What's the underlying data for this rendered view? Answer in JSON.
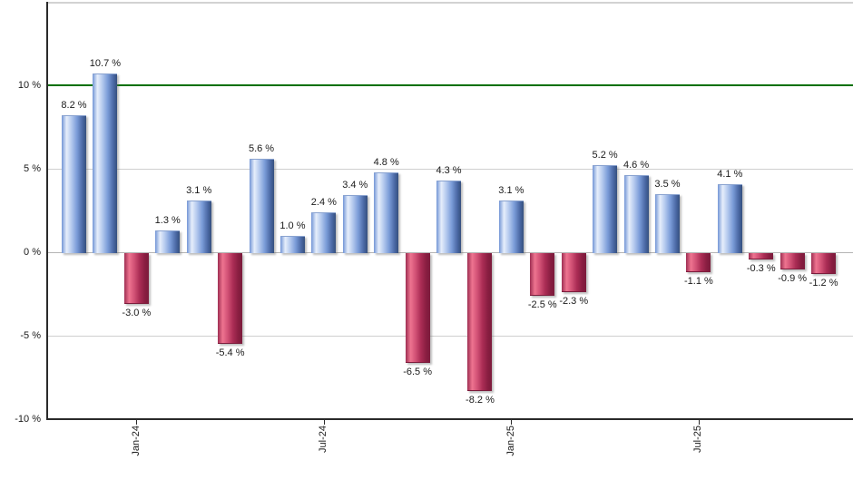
{
  "chart_data": {
    "type": "bar",
    "title": "",
    "xlabel": "",
    "ylabel": "",
    "unit": "%",
    "values": [
      8.2,
      10.7,
      -3.0,
      1.3,
      3.1,
      -5.4,
      5.6,
      1.0,
      2.4,
      3.4,
      4.8,
      -6.5,
      4.3,
      -8.2,
      3.1,
      -2.5,
      -2.3,
      5.2,
      4.6,
      3.5,
      -1.1,
      4.1,
      -0.3,
      -0.9,
      -1.2
    ],
    "value_labels": [
      "8.2 %",
      "10.7 %",
      "-3.0 %",
      "1.3 %",
      "3.1 %",
      "-5.4 %",
      "5.6 %",
      "1.0 %",
      "2.4 %",
      "3.4 %",
      "4.8 %",
      "-6.5 %",
      "4.3 %",
      "-8.2 %",
      "3.1 %",
      "-2.5 %",
      "-2.3 %",
      "5.2 %",
      "4.6 %",
      "3.5 %",
      "-1.1 %",
      "4.1 %",
      "-0.3 %",
      "-0.9 %",
      "-1.2 %"
    ],
    "xticks": [
      {
        "index": 2,
        "label": "Jan-24"
      },
      {
        "index": 8,
        "label": "Jul-24"
      },
      {
        "index": 14,
        "label": "Jan-25"
      },
      {
        "index": 20,
        "label": "Jul-25"
      }
    ],
    "yticks": [
      {
        "value": 10,
        "label": "10 %",
        "line": "none"
      },
      {
        "value": 5,
        "label": "5 %",
        "line": "grid"
      },
      {
        "value": 0,
        "label": "0 %",
        "line": "zero"
      },
      {
        "value": -5,
        "label": "-5 %",
        "line": "grid"
      },
      {
        "value": -10,
        "label": "-10 %",
        "line": "none"
      }
    ],
    "ylim": [
      -10,
      15
    ],
    "grid": true,
    "legend": "none",
    "reference_line": {
      "value": 10,
      "color": "#007000"
    },
    "colors": {
      "positive_gradient": [
        "#7396d6",
        "#e6eefb",
        "#b4c9ee",
        "#7b9cd8",
        "#4a68a4",
        "#35507e"
      ],
      "negative_gradient": [
        "#9e2e52",
        "#ee7490",
        "#d25276",
        "#ab2d55",
        "#871d40",
        "#7c1c3c"
      ],
      "gridline": "#cfcfcf",
      "zero_line": "#b5b5b5",
      "axis": "#2a2a2a",
      "label_text": "#1a1a1a"
    }
  }
}
